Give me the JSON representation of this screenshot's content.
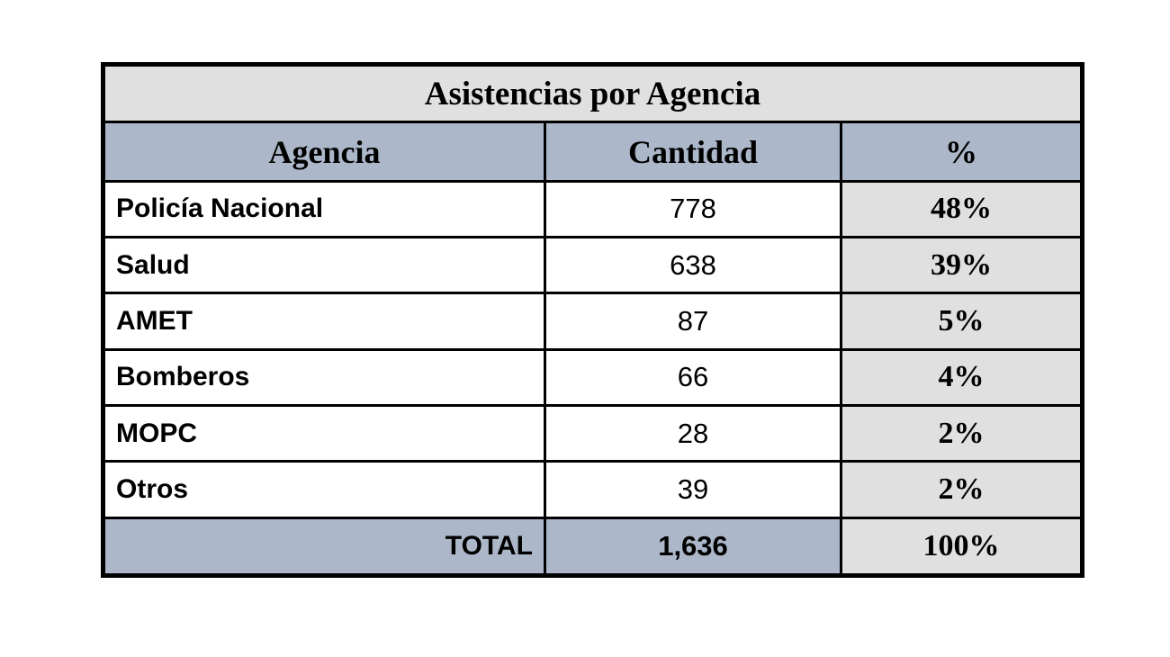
{
  "table": {
    "title": "Asistencias por Agencia",
    "columns": {
      "agencia": "Agencia",
      "cantidad": "Cantidad",
      "pct": "%"
    },
    "rows": [
      {
        "agencia": "Policía Nacional",
        "cantidad": "778",
        "pct": "48%"
      },
      {
        "agencia": "Salud",
        "cantidad": "638",
        "pct": "39%"
      },
      {
        "agencia": "AMET",
        "cantidad": "87",
        "pct": "5%"
      },
      {
        "agencia": "Bomberos",
        "cantidad": "66",
        "pct": "4%"
      },
      {
        "agencia": "MOPC",
        "cantidad": "28",
        "pct": "2%"
      },
      {
        "agencia": "Otros",
        "cantidad": "39",
        "pct": "2%"
      }
    ],
    "total": {
      "label": "TOTAL",
      "cantidad": "1,636",
      "pct": "100%"
    }
  },
  "colors": {
    "header_fill": "#acb8c9",
    "title_fill": "#e0e0e1",
    "pct_column_fill": "#e0e0e1",
    "total_fill": "#acb8c9",
    "border": "#000000",
    "text": "#000000",
    "page_background": "#ffffff"
  },
  "chart_data": {
    "type": "table",
    "title": "Asistencias por Agencia",
    "columns": [
      "Agencia",
      "Cantidad",
      "%"
    ],
    "rows": [
      [
        "Policía Nacional",
        778,
        "48%"
      ],
      [
        "Salud",
        638,
        "39%"
      ],
      [
        "AMET",
        87,
        "5%"
      ],
      [
        "Bomberos",
        66,
        "4%"
      ],
      [
        "MOPC",
        28,
        "2%"
      ],
      [
        "Otros",
        39,
        "2%"
      ]
    ],
    "total_row": [
      "TOTAL",
      1636,
      "100%"
    ]
  }
}
